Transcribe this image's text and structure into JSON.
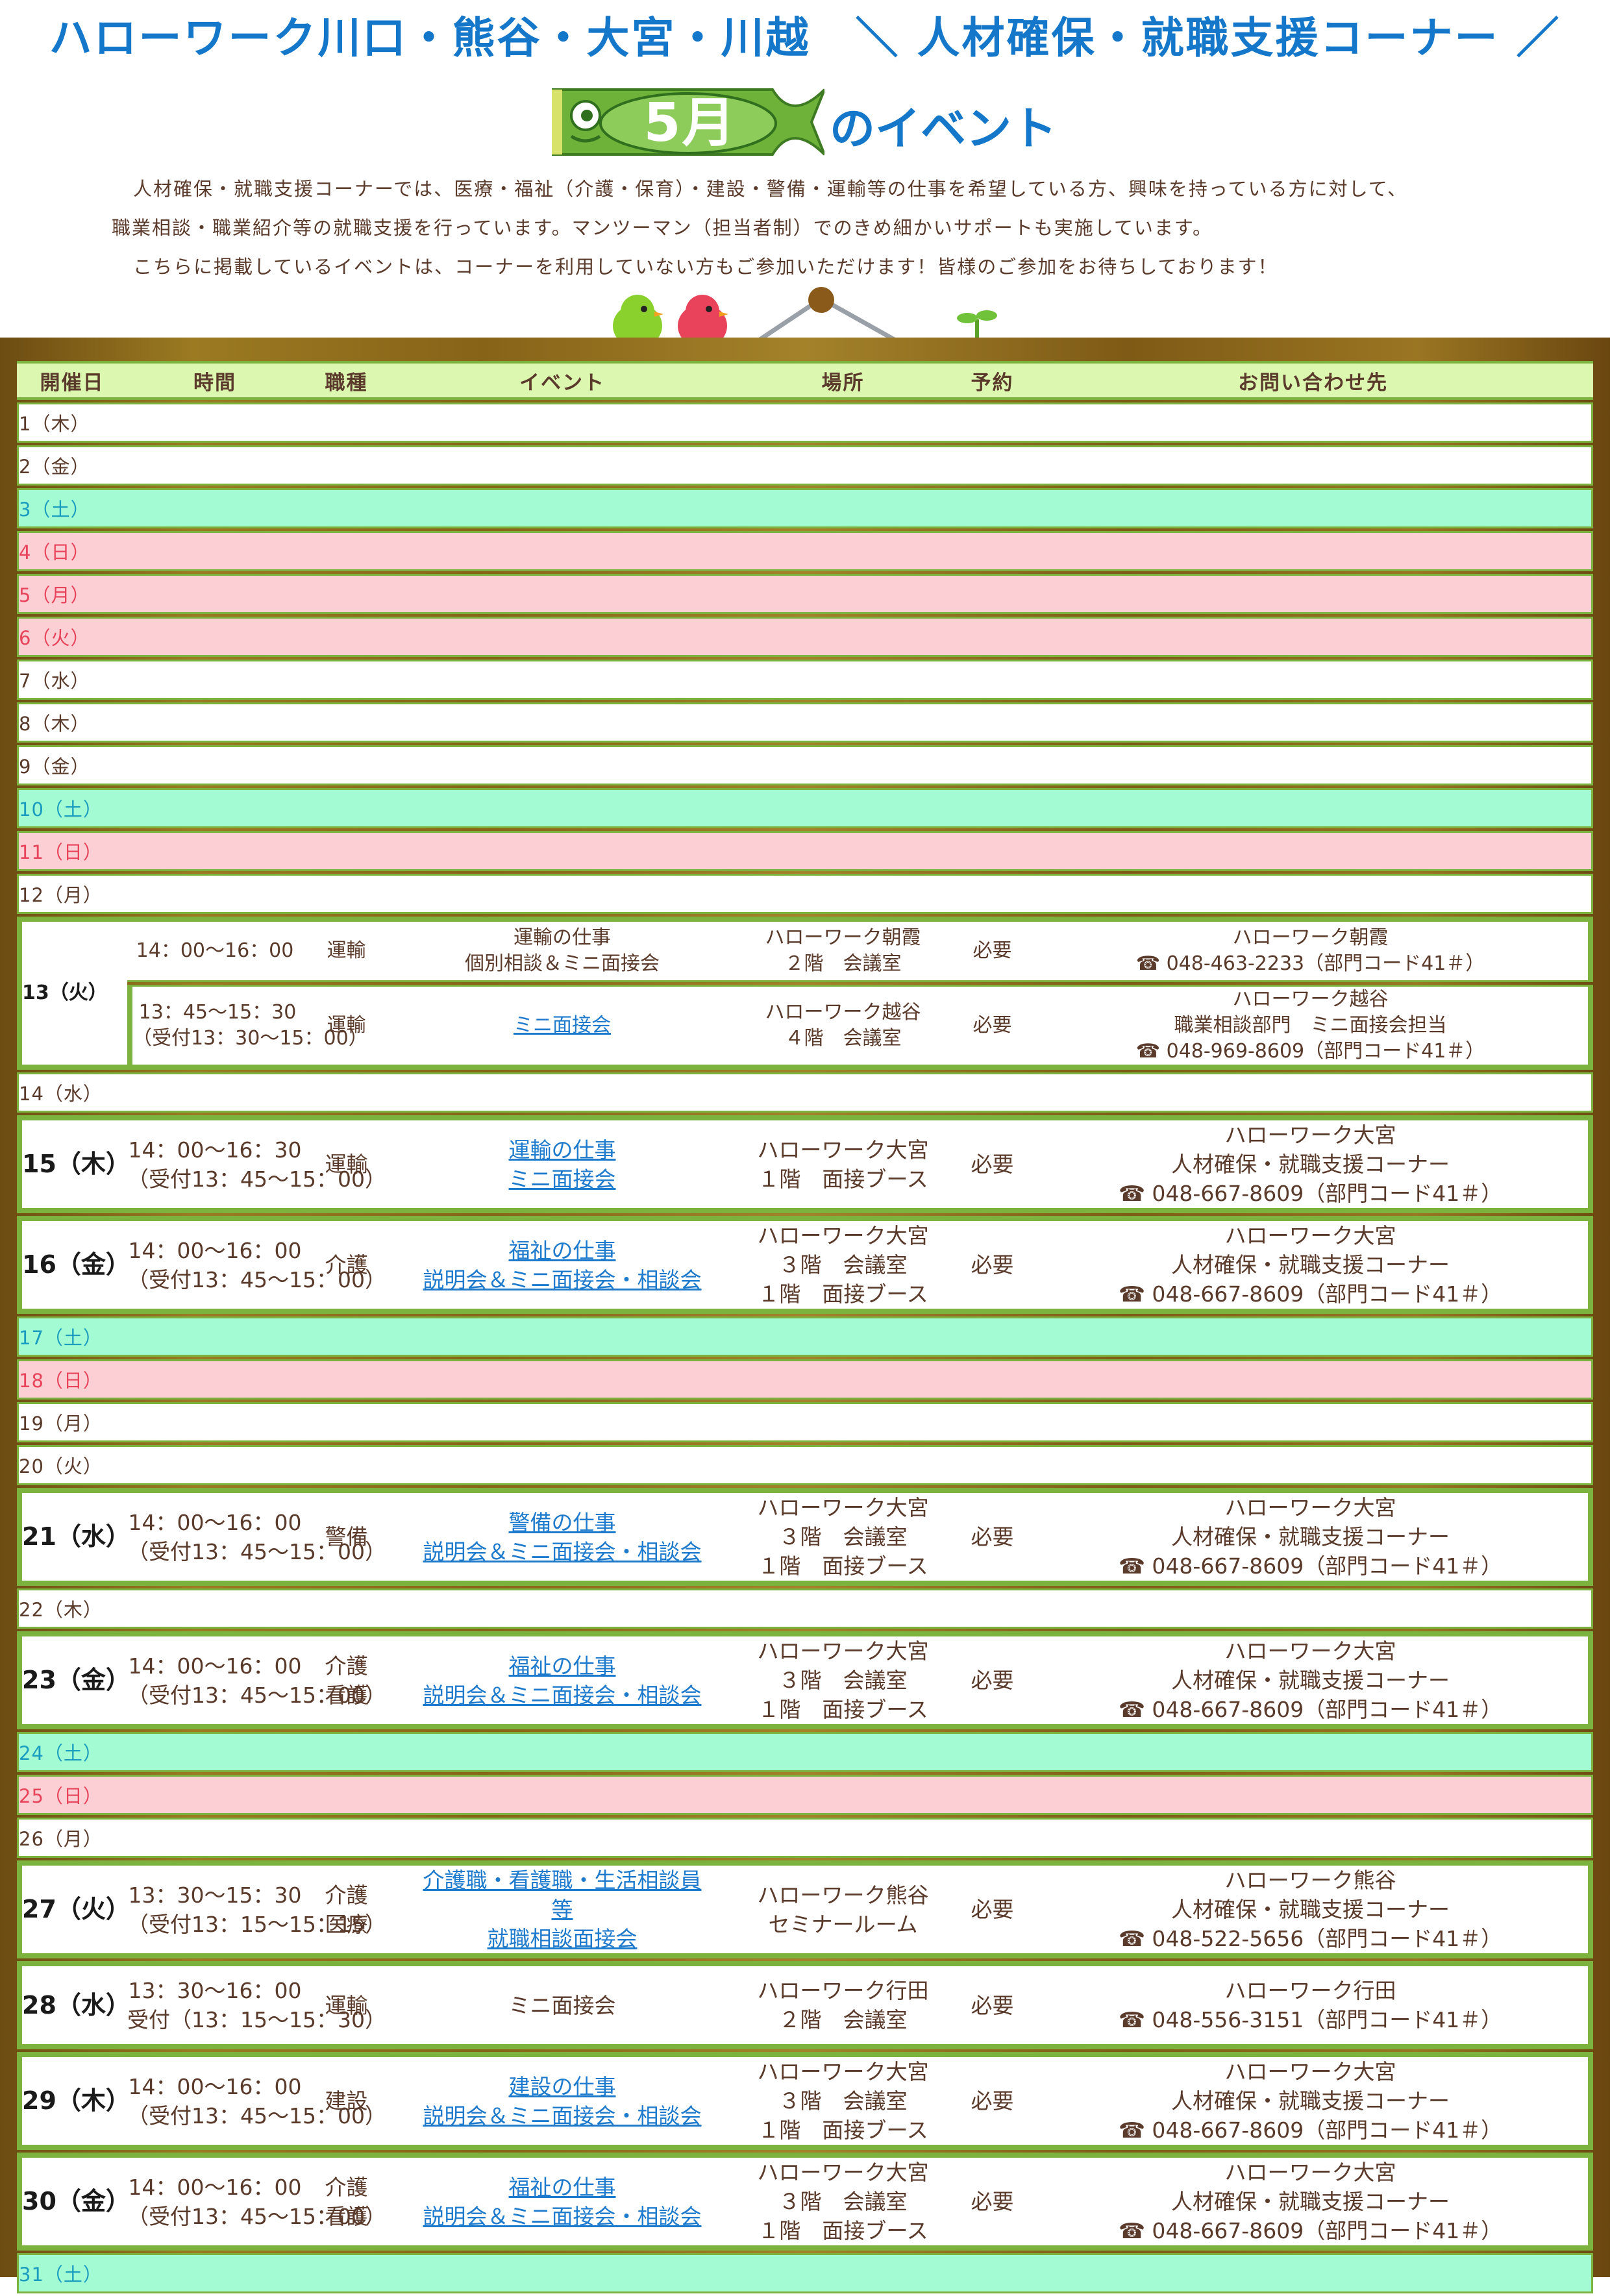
{
  "header": {
    "title": "ハローワーク川口・熊谷・大宮・川越　＼ 人材確保・就職支援コーナー ／",
    "banner_month": "5月",
    "banner_suffix": "のイベント"
  },
  "intro": [
    "人材確保・就職支援コーナーでは、医療・福祉（介護・保育）・建設・警備・運輸等の仕事を希望している方、興味を持っている方に対して、",
    "職業相談・職業紹介等の就職支援を行っています。マンツーマン（担当者制）でのきめ細かいサポートも実施しています。",
    "こちらに掲載しているイベントは、コーナーを利用していない方もご参加いただけます！皆様のご参加をお待ちしております！"
  ],
  "colors": {
    "title_blue": "#1577c9",
    "grid_green": "#7bb33e",
    "header_bg": "#dcf7b0",
    "saturday_bg": "#a3fbd4",
    "saturday_text": "#1a9cbf",
    "holiday_bg": "#fbcfd3",
    "holiday_text": "#e8435a",
    "link_blue": "#1e7acc",
    "board_brown": "#8a6a1c"
  },
  "icons": [
    "koinobori-banner-icon",
    "green-bird-icon",
    "red-bird-icon",
    "hanging-sign-icon",
    "sprout-icon",
    "phone-icon"
  ],
  "table": {
    "columns": [
      "開催日",
      "時間",
      "職種",
      "イベント",
      "場所",
      "予約",
      "お問い合わせ先"
    ],
    "rows": [
      {
        "date": "1（木）",
        "type": "weekday"
      },
      {
        "date": "2（金）",
        "type": "weekday"
      },
      {
        "date": "3（土）",
        "type": "sat"
      },
      {
        "date": "4（日）",
        "type": "hol"
      },
      {
        "date": "5（月）",
        "type": "hol"
      },
      {
        "date": "6（火）",
        "type": "hol"
      },
      {
        "date": "7（水）",
        "type": "weekday"
      },
      {
        "date": "8（木）",
        "type": "weekday"
      },
      {
        "date": "9（金）",
        "type": "weekday"
      },
      {
        "date": "10（土）",
        "type": "sat"
      },
      {
        "date": "11（日）",
        "type": "hol"
      },
      {
        "date": "12（月）",
        "type": "weekday"
      },
      {
        "date": "13（火）",
        "type": "event",
        "events": [
          {
            "time": [
              "14：00～16：00"
            ],
            "job": [
              "運輸"
            ],
            "event": [
              "運輸の仕事",
              "個別相談＆ミニ面接会"
            ],
            "link": false,
            "place": [
              "ハローワーク朝霞",
              "２階　会議室"
            ],
            "reservation": "必要",
            "contact": [
              "ハローワーク朝霞"
            ],
            "phone": "048-463-2233（部門コード41＃）"
          },
          {
            "time": [
              "13：45～15：30",
              "（受付13：30～15：00）"
            ],
            "job": [
              "運輸"
            ],
            "event": [
              "ミニ面接会"
            ],
            "link": true,
            "place": [
              "ハローワーク越谷",
              "４階　会議室"
            ],
            "reservation": "必要",
            "contact": [
              "ハローワーク越谷",
              "職業相談部門　ミニ面接会担当"
            ],
            "phone": "048-969-8609（部門コード41＃）"
          }
        ]
      },
      {
        "date": "14（水）",
        "type": "weekday"
      },
      {
        "date": "15（木）",
        "type": "event",
        "events": [
          {
            "time": [
              "14：00～16：30",
              "（受付13：45～15：00）"
            ],
            "job": [
              "運輸"
            ],
            "event": [
              "運輸の仕事",
              "ミニ面接会"
            ],
            "link": true,
            "place": [
              "ハローワーク大宮",
              "１階　面接ブース"
            ],
            "reservation": "必要",
            "contact": [
              "ハローワーク大宮",
              "人材確保・就職支援コーナー"
            ],
            "phone": "048-667-8609（部門コード41＃）"
          }
        ]
      },
      {
        "date": "16（金）",
        "type": "event",
        "events": [
          {
            "time": [
              "14：00～16：00",
              "（受付13：45～15：00）"
            ],
            "job": [
              "介護"
            ],
            "event": [
              "福祉の仕事",
              "説明会＆ミニ面接会・相談会"
            ],
            "link": true,
            "place": [
              "ハローワーク大宮",
              "３階　会議室",
              "１階　面接ブース"
            ],
            "reservation": "必要",
            "contact": [
              "ハローワーク大宮",
              "人材確保・就職支援コーナー"
            ],
            "phone": "048-667-8609（部門コード41＃）"
          }
        ]
      },
      {
        "date": "17（土）",
        "type": "sat"
      },
      {
        "date": "18（日）",
        "type": "hol"
      },
      {
        "date": "19（月）",
        "type": "weekday"
      },
      {
        "date": "20（火）",
        "type": "weekday"
      },
      {
        "date": "21（水）",
        "type": "event",
        "events": [
          {
            "time": [
              "14：00～16：00",
              "（受付13：45～15：00）"
            ],
            "job": [
              "警備"
            ],
            "event": [
              "警備の仕事",
              "説明会＆ミニ面接会・相談会"
            ],
            "link": true,
            "place": [
              "ハローワーク大宮",
              "３階　会議室",
              "１階　面接ブース"
            ],
            "reservation": "必要",
            "contact": [
              "ハローワーク大宮",
              "人材確保・就職支援コーナー"
            ],
            "phone": "048-667-8609（部門コード41＃）"
          }
        ]
      },
      {
        "date": "22（木）",
        "type": "weekday"
      },
      {
        "date": "23（金）",
        "type": "event",
        "events": [
          {
            "time": [
              "14：00～16：00",
              "（受付13：45～15：00）"
            ],
            "job": [
              "介護",
              "看護"
            ],
            "event": [
              "福祉の仕事",
              "説明会＆ミニ面接会・相談会"
            ],
            "link": true,
            "place": [
              "ハローワーク大宮",
              "３階　会議室",
              "１階　面接ブース"
            ],
            "reservation": "必要",
            "contact": [
              "ハローワーク大宮",
              "人材確保・就職支援コーナー"
            ],
            "phone": "048-667-8609（部門コード41＃）"
          }
        ]
      },
      {
        "date": "24（土）",
        "type": "sat"
      },
      {
        "date": "25（日）",
        "type": "hol"
      },
      {
        "date": "26（月）",
        "type": "weekday"
      },
      {
        "date": "27（火）",
        "type": "event",
        "events": [
          {
            "time": [
              "13：30～15：30",
              "（受付13：15～15：15）"
            ],
            "job": [
              "介護",
              "医療"
            ],
            "event": [
              "介護職・看護職・生活相談員",
              "等",
              "就職相談面接会"
            ],
            "link": true,
            "place": [
              "ハローワーク熊谷",
              "セミナールーム"
            ],
            "reservation": "必要",
            "contact": [
              "ハローワーク熊谷",
              "人材確保・就職支援コーナー"
            ],
            "phone": "048-522-5656（部門コード41＃）"
          }
        ]
      },
      {
        "date": "28（水）",
        "type": "event",
        "events": [
          {
            "time": [
              "13：30～16：00",
              "受付（13：15～15：30）"
            ],
            "job": [
              "運輸"
            ],
            "event": [
              "ミニ面接会"
            ],
            "link": false,
            "place": [
              "ハローワーク行田",
              "２階　会議室"
            ],
            "reservation": "必要",
            "contact": [
              "ハローワーク行田"
            ],
            "phone": "048-556-3151（部門コード41＃）"
          }
        ]
      },
      {
        "date": "29（木）",
        "type": "event",
        "events": [
          {
            "time": [
              "14：00～16：00",
              "（受付13：45～15：00）"
            ],
            "job": [
              "建設"
            ],
            "event": [
              "建設の仕事",
              "説明会＆ミニ面接会・相談会"
            ],
            "link": true,
            "place": [
              "ハローワーク大宮",
              "３階　会議室",
              "１階　面接ブース"
            ],
            "reservation": "必要",
            "contact": [
              "ハローワーク大宮",
              "人材確保・就職支援コーナー"
            ],
            "phone": "048-667-8609（部門コード41＃）"
          }
        ]
      },
      {
        "date": "30（金）",
        "type": "event",
        "events": [
          {
            "time": [
              "14：00～16：00",
              "（受付13：45～15：00）"
            ],
            "job": [
              "介護",
              "看護"
            ],
            "event": [
              "福祉の仕事",
              "説明会＆ミニ面接会・相談会"
            ],
            "link": true,
            "place": [
              "ハローワーク大宮",
              "３階　会議室",
              "１階　面接ブース"
            ],
            "reservation": "必要",
            "contact": [
              "ハローワーク大宮",
              "人材確保・就職支援コーナー"
            ],
            "phone": "048-667-8609（部門コード41＃）"
          }
        ]
      },
      {
        "date": "31（土）",
        "type": "sat"
      }
    ]
  }
}
